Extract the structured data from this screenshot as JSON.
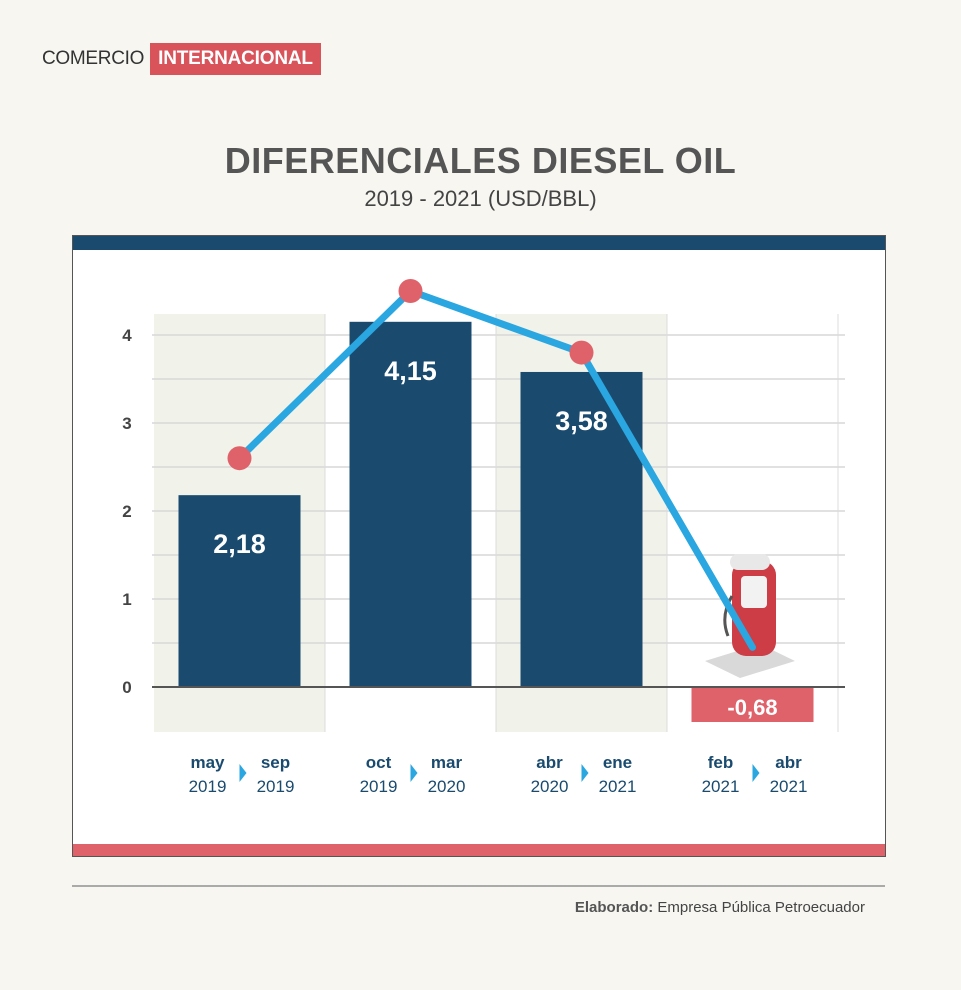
{
  "brand": {
    "plain": "COMERCIO",
    "tag": "INTERNACIONAL"
  },
  "title": "DIFERENCIALES DIESEL OIL",
  "subtitle": "2019 - 2021 (USD/BBL)",
  "footer": {
    "label": "Elaborado:",
    "text": "Empresa Pública Petroecuador"
  },
  "colors": {
    "bar": "#1a4b6f",
    "negative_bar": "#df626a",
    "line": "#2aa6e0",
    "marker": "#df626a",
    "band": "#f1f2e9"
  },
  "chart_data": {
    "type": "bar",
    "title": "DIFERENCIALES DIESEL OIL",
    "subtitle": "2019 - 2021 (USD/BBL)",
    "yticks": [
      "0",
      "1",
      "2",
      "3",
      "4"
    ],
    "ylim": [
      -0.5,
      4.5
    ],
    "categories": [
      {
        "from_month": "may",
        "from_year": "2019",
        "to_month": "sep",
        "to_year": "2019"
      },
      {
        "from_month": "oct",
        "from_year": "2019",
        "to_month": "mar",
        "to_year": "2020"
      },
      {
        "from_month": "abr",
        "from_year": "2020",
        "to_month": "ene",
        "to_year": "2021"
      },
      {
        "from_month": "feb",
        "from_year": "2021",
        "to_month": "abr",
        "to_year": "2021"
      }
    ],
    "values": [
      2.18,
      4.15,
      3.58,
      -0.68
    ],
    "labels": [
      "2,18",
      "4,15",
      "3,58",
      "-0,68"
    ],
    "line_values": [
      2.6,
      4.5,
      3.8,
      0.45
    ],
    "grid": true,
    "icon": "fuel-pump-icon"
  }
}
